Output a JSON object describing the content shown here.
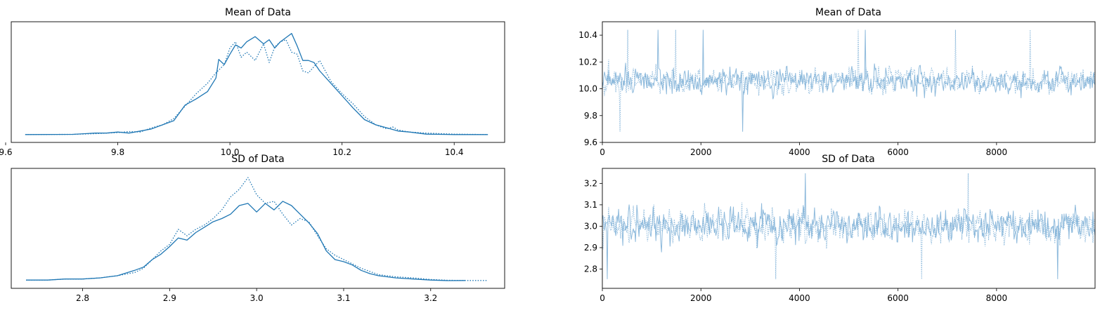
{
  "figure": {
    "background": "#ffffff",
    "line_color": "#1f77b4",
    "trace_color": "#7aaed6"
  },
  "chart_data": [
    {
      "type": "line",
      "subtype": "kde",
      "title": "Mean of Data",
      "xlabel": "",
      "ylabel": "",
      "xlim": [
        9.61,
        10.49
      ],
      "ylim": [
        0,
        1
      ],
      "xticks": [
        9.6,
        9.8,
        10.0,
        10.2,
        10.4
      ],
      "xtick_labels": [
        "9.6",
        "9.8",
        "10.0",
        "10.2",
        "10.4"
      ],
      "yticks": [],
      "grid": false,
      "legend": null,
      "series": [
        {
          "style": "solid",
          "x": [
            9.635,
            9.72,
            9.76,
            9.78,
            9.8,
            9.82,
            9.84,
            9.86,
            9.88,
            9.9,
            9.92,
            9.94,
            9.96,
            9.975,
            9.98,
            9.99,
            10.0,
            10.01,
            10.02,
            10.03,
            10.045,
            10.06,
            10.07,
            10.08,
            10.09,
            10.1,
            10.11,
            10.12,
            10.13,
            10.14,
            10.15,
            10.16,
            10.18,
            10.2,
            10.22,
            10.24,
            10.26,
            10.28,
            10.3,
            10.32,
            10.35,
            10.4,
            10.46
          ],
          "y": [
            0.006,
            0.008,
            0.02,
            0.02,
            0.03,
            0.02,
            0.04,
            0.06,
            0.1,
            0.14,
            0.29,
            0.35,
            0.42,
            0.55,
            0.73,
            0.68,
            0.78,
            0.87,
            0.84,
            0.9,
            0.95,
            0.88,
            0.92,
            0.84,
            0.9,
            0.94,
            0.98,
            0.86,
            0.72,
            0.72,
            0.7,
            0.62,
            0.5,
            0.38,
            0.26,
            0.15,
            0.1,
            0.07,
            0.04,
            0.03,
            0.01,
            0.006,
            0.006
          ]
        },
        {
          "style": "dotted",
          "x": [
            9.635,
            9.72,
            9.76,
            9.78,
            9.8,
            9.82,
            9.84,
            9.86,
            9.88,
            9.9,
            9.92,
            9.94,
            9.96,
            9.975,
            9.99,
            10.0,
            10.01,
            10.02,
            10.03,
            10.045,
            10.06,
            10.07,
            10.08,
            10.09,
            10.1,
            10.11,
            10.12,
            10.13,
            10.14,
            10.16,
            10.18,
            10.2,
            10.22,
            10.24,
            10.26,
            10.28,
            10.29,
            10.3,
            10.32,
            10.35,
            10.4,
            10.46
          ],
          "y": [
            0.006,
            0.008,
            0.015,
            0.02,
            0.025,
            0.035,
            0.03,
            0.07,
            0.1,
            0.16,
            0.28,
            0.4,
            0.5,
            0.6,
            0.68,
            0.84,
            0.9,
            0.75,
            0.8,
            0.72,
            0.88,
            0.7,
            0.85,
            0.9,
            0.92,
            0.8,
            0.78,
            0.62,
            0.6,
            0.72,
            0.52,
            0.4,
            0.3,
            0.18,
            0.1,
            0.06,
            0.08,
            0.05,
            0.03,
            0.02,
            0.01,
            0.006
          ]
        }
      ]
    },
    {
      "type": "line",
      "subtype": "trace",
      "title": "Mean of Data",
      "xlabel": "",
      "ylabel": "",
      "xlim": [
        0,
        9999
      ],
      "ylim": [
        9.6,
        10.5
      ],
      "xticks": [
        0,
        2000,
        4000,
        6000,
        8000
      ],
      "xtick_labels": [
        "0",
        "2000",
        "4000",
        "6000",
        "8000"
      ],
      "yticks": [
        9.6,
        9.8,
        10.0,
        10.2,
        10.4
      ],
      "ytick_labels": [
        "9.6",
        "9.8",
        "10.0",
        "10.2",
        "10.4"
      ],
      "grid": false,
      "legend": null,
      "series_summary": {
        "n_draws": 10000,
        "center": 10.06,
        "spread": 0.085,
        "min": 9.63,
        "max": 10.46,
        "styles": [
          "solid",
          "dotted"
        ]
      }
    },
    {
      "type": "line",
      "subtype": "kde",
      "title": "SD of Data",
      "xlabel": "",
      "ylabel": "",
      "xlim": [
        2.718,
        3.285
      ],
      "ylim": [
        0,
        1
      ],
      "xticks": [
        2.8,
        2.9,
        3.0,
        3.1,
        3.2
      ],
      "xtick_labels": [
        "2.8",
        "2.9",
        "3.0",
        "3.1",
        "3.2"
      ],
      "yticks": [],
      "grid": false,
      "legend": null,
      "series": [
        {
          "style": "solid",
          "x": [
            2.735,
            2.76,
            2.78,
            2.8,
            2.82,
            2.84,
            2.86,
            2.87,
            2.88,
            2.89,
            2.9,
            2.91,
            2.92,
            2.93,
            2.94,
            2.95,
            2.96,
            2.97,
            2.98,
            2.99,
            3.0,
            3.01,
            3.02,
            3.03,
            3.04,
            3.05,
            3.06,
            3.07,
            3.08,
            3.09,
            3.1,
            3.11,
            3.12,
            3.13,
            3.14,
            3.16,
            3.18,
            3.2,
            3.22,
            3.24
          ],
          "y": [
            0.01,
            0.01,
            0.02,
            0.02,
            0.03,
            0.05,
            0.1,
            0.13,
            0.2,
            0.25,
            0.32,
            0.4,
            0.38,
            0.45,
            0.5,
            0.55,
            0.58,
            0.62,
            0.7,
            0.72,
            0.64,
            0.72,
            0.66,
            0.74,
            0.7,
            0.62,
            0.54,
            0.44,
            0.28,
            0.2,
            0.18,
            0.15,
            0.1,
            0.07,
            0.05,
            0.03,
            0.02,
            0.01,
            0.005,
            0.006
          ]
        },
        {
          "style": "dotted",
          "x": [
            2.735,
            2.76,
            2.78,
            2.8,
            2.82,
            2.84,
            2.86,
            2.87,
            2.88,
            2.89,
            2.9,
            2.91,
            2.92,
            2.93,
            2.94,
            2.95,
            2.96,
            2.97,
            2.98,
            2.99,
            3.0,
            3.01,
            3.02,
            3.03,
            3.04,
            3.05,
            3.06,
            3.07,
            3.08,
            3.09,
            3.1,
            3.11,
            3.12,
            3.13,
            3.14,
            3.16,
            3.18,
            3.2,
            3.22,
            3.24,
            3.265
          ],
          "y": [
            0.01,
            0.01,
            0.02,
            0.02,
            0.03,
            0.05,
            0.08,
            0.12,
            0.2,
            0.28,
            0.34,
            0.48,
            0.42,
            0.48,
            0.52,
            0.58,
            0.66,
            0.78,
            0.85,
            0.96,
            0.8,
            0.72,
            0.74,
            0.62,
            0.52,
            0.58,
            0.55,
            0.42,
            0.3,
            0.24,
            0.2,
            0.16,
            0.12,
            0.09,
            0.06,
            0.04,
            0.03,
            0.015,
            0.008,
            0.006,
            0.006
          ]
        }
      ]
    },
    {
      "type": "line",
      "subtype": "trace",
      "title": "SD of Data",
      "xlabel": "",
      "ylabel": "",
      "xlim": [
        0,
        9999
      ],
      "ylim": [
        2.71,
        3.27
      ],
      "xticks": [
        0,
        2000,
        4000,
        6000,
        8000
      ],
      "xtick_labels": [
        "0",
        "2000",
        "4000",
        "6000",
        "8000"
      ],
      "yticks": [
        2.8,
        2.9,
        3.0,
        3.1,
        3.2
      ],
      "ytick_labels": [
        "2.8",
        "2.9",
        "3.0",
        "3.1",
        "3.2"
      ],
      "grid": false,
      "legend": null,
      "series_summary": {
        "n_draws": 10000,
        "center": 3.0,
        "spread": 0.07,
        "min": 2.74,
        "max": 3.26,
        "styles": [
          "solid",
          "dotted"
        ]
      }
    }
  ]
}
